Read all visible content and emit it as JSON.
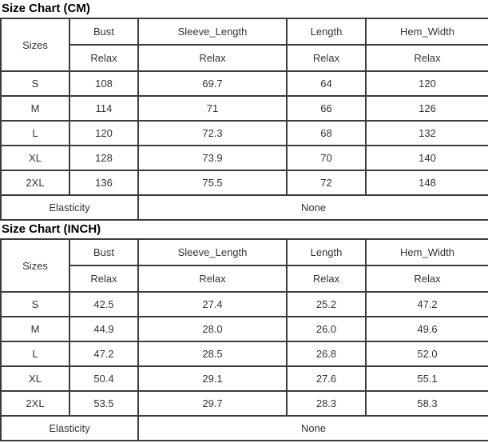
{
  "page": {
    "background": "#ffffff",
    "border_color": "#3c3c3c",
    "text_color": "#333333",
    "title_color": "#000000"
  },
  "chart_data": [
    {
      "type": "table",
      "title": "Size Chart (CM)",
      "columns": [
        "Sizes",
        "Bust",
        "Sleeve_Length",
        "Length",
        "Hem_Width"
      ],
      "sub_header": [
        "",
        "Relax",
        "Relax",
        "Relax",
        "Relax"
      ],
      "rows": [
        [
          "S",
          "108",
          "69.7",
          "64",
          "120"
        ],
        [
          "M",
          "114",
          "71",
          "66",
          "126"
        ],
        [
          "L",
          "120",
          "72.3",
          "68",
          "132"
        ],
        [
          "XL",
          "128",
          "73.9",
          "70",
          "140"
        ],
        [
          "2XL",
          "136",
          "75.5",
          "72",
          "148"
        ]
      ],
      "footer": [
        "Elasticity",
        "None"
      ]
    },
    {
      "type": "table",
      "title": "Size Chart (INCH)",
      "columns": [
        "Sizes",
        "Bust",
        "Sleeve_Length",
        "Length",
        "Hem_Width"
      ],
      "sub_header": [
        "",
        "Relax",
        "Relax",
        "Relax",
        "Relax"
      ],
      "rows": [
        [
          "S",
          "42.5",
          "27.4",
          "25.2",
          "47.2"
        ],
        [
          "M",
          "44.9",
          "28.0",
          "26.0",
          "49.6"
        ],
        [
          "L",
          "47.2",
          "28.5",
          "26.8",
          "52.0"
        ],
        [
          "XL",
          "50.4",
          "29.1",
          "27.6",
          "55.1"
        ],
        [
          "2XL",
          "53.5",
          "29.7",
          "28.3",
          "58.3"
        ]
      ],
      "footer": [
        "Elasticity",
        "None"
      ]
    }
  ]
}
